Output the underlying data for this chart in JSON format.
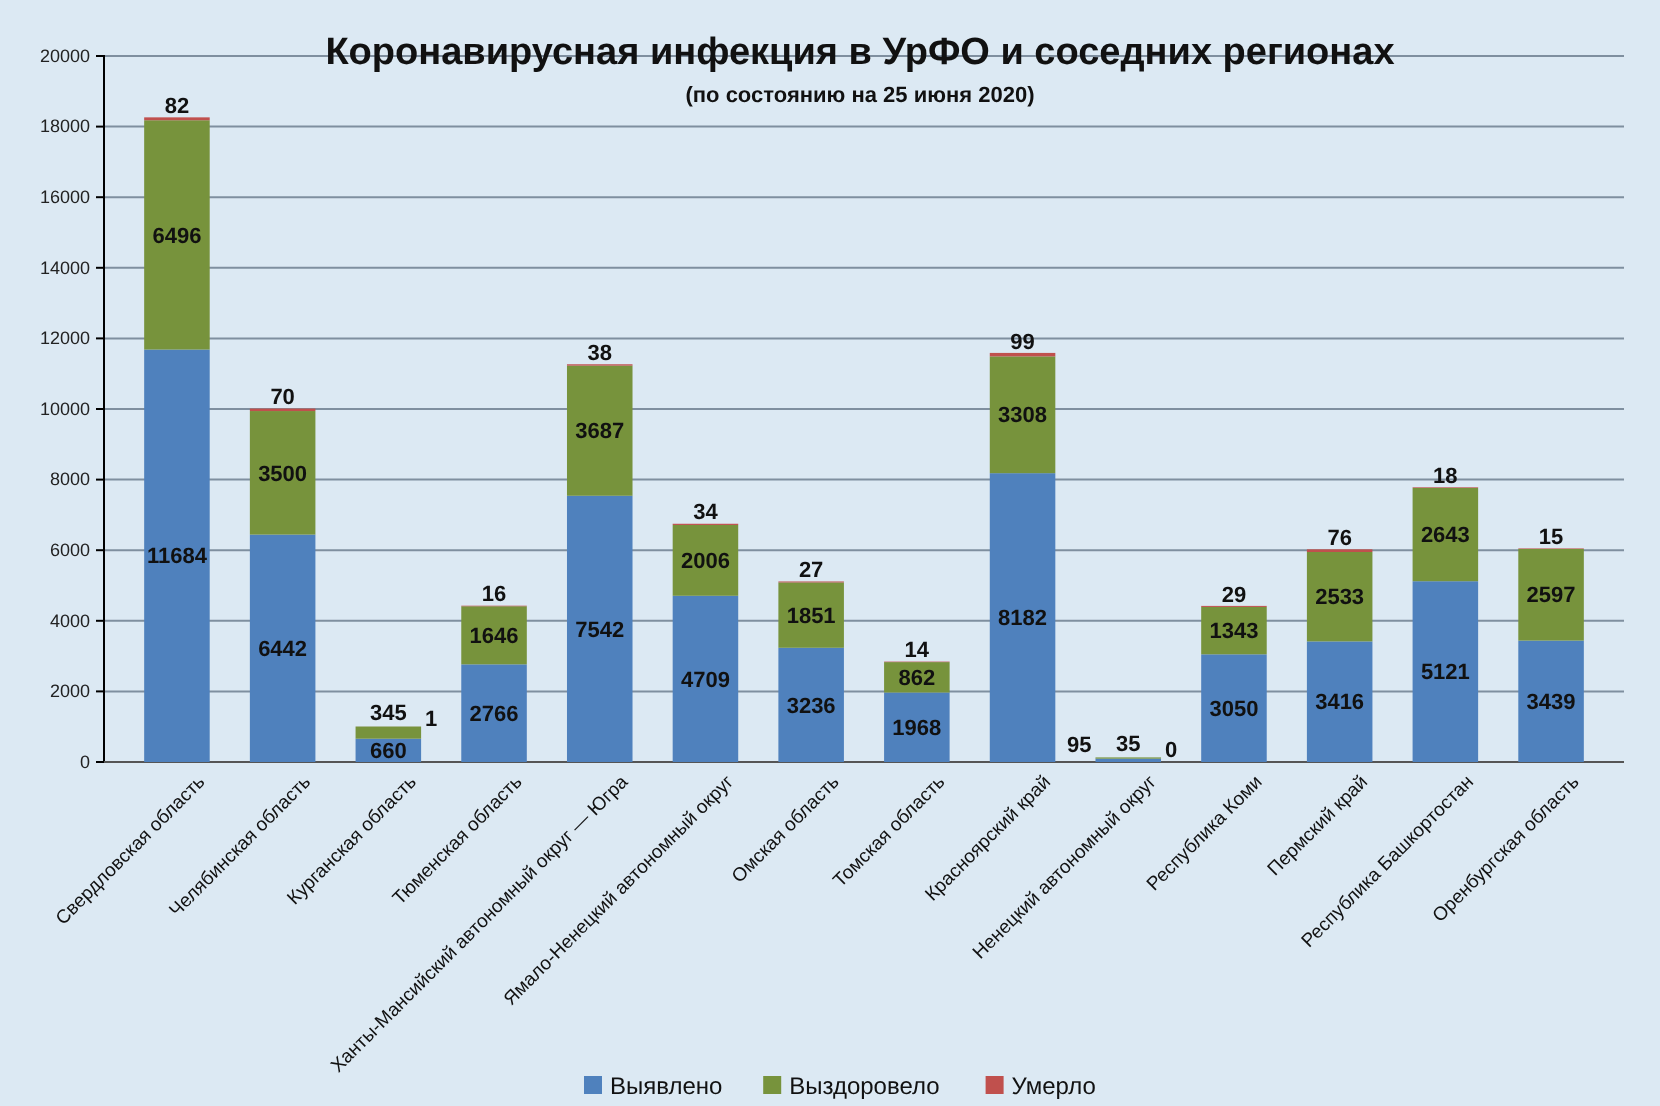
{
  "chart_data": {
    "type": "bar",
    "title": "Коронавирусная инфекция в УрФО и соседних регионах",
    "subtitle": "(по состоянию на 25 июня 2020)",
    "categories": [
      "Свердловская область",
      "Челябинская область",
      "Курганская область",
      "Тюменская область",
      "Ханты-Мансийский автономный округ — Югра",
      "Ямало-Ненецкий автономный округ",
      "Омская область",
      "Томская область",
      "Красноярский край",
      "Ненецкий автономный округ",
      "Республика Коми",
      "Пермский край",
      "Республика Башкортостан",
      "Оренбургская область"
    ],
    "series": [
      {
        "name": "Выявлено",
        "color": "#4f81bd",
        "values": [
          11684,
          6442,
          660,
          2766,
          7542,
          4709,
          3236,
          1968,
          8182,
          95,
          3050,
          3416,
          5121,
          3439
        ]
      },
      {
        "name": "Выздоровело",
        "color": "#77933c",
        "values": [
          6496,
          3500,
          345,
          1646,
          3687,
          2006,
          1851,
          862,
          3308,
          35,
          1343,
          2533,
          2643,
          2597
        ]
      },
      {
        "name": "Умерло",
        "color": "#c0504d",
        "values": [
          82,
          70,
          1,
          16,
          38,
          34,
          27,
          14,
          99,
          0,
          29,
          76,
          18,
          15
        ]
      }
    ],
    "stacked": true,
    "data_labels": true,
    "ylim": [
      0,
      20000
    ],
    "yticks": [
      0,
      2000,
      4000,
      6000,
      8000,
      10000,
      12000,
      14000,
      16000,
      18000,
      20000
    ],
    "grid": "y",
    "legend": "bottom"
  }
}
